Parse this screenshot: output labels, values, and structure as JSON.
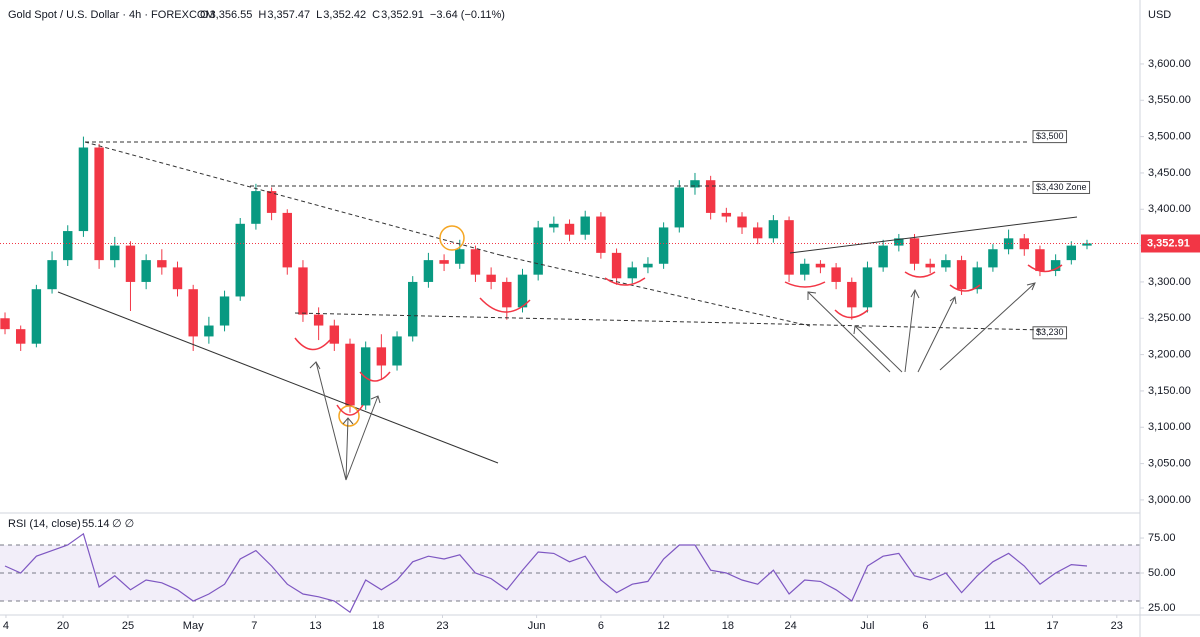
{
  "chart_data": [
    {
      "type": "candlestick",
      "title": "Gold Spot / U.S. Dollar · 4h · FOREXCOM",
      "ohlc": [
        {
          "key": "O",
          "value": "3,356.55"
        },
        {
          "key": "H",
          "value": "3,357.47"
        },
        {
          "key": "L",
          "value": "3,352.42"
        },
        {
          "key": "C",
          "value": "3,352.91"
        }
      ],
      "change": "−3.64 (−0.11%)",
      "unit": "USD",
      "up_color": "#089981",
      "down_color": "#f23645",
      "xlim": [
        -0.32,
        72.38
      ],
      "xticks": [
        {
          "value": 0.06,
          "label": "4"
        },
        {
          "value": 3.7,
          "label": "20"
        },
        {
          "value": 7.84,
          "label": "25"
        },
        {
          "value": 12,
          "label": "May"
        },
        {
          "value": 15.9,
          "label": "7"
        },
        {
          "value": 19.8,
          "label": "13"
        },
        {
          "value": 23.8,
          "label": "18"
        },
        {
          "value": 27.9,
          "label": "23"
        },
        {
          "value": 33.9,
          "label": "Jun"
        },
        {
          "value": 38,
          "label": "6"
        },
        {
          "value": 42,
          "label": "12"
        },
        {
          "value": 46.1,
          "label": "18"
        },
        {
          "value": 50.1,
          "label": "24"
        },
        {
          "value": 55,
          "label": "Jul"
        },
        {
          "value": 58.7,
          "label": "6"
        },
        {
          "value": 62.8,
          "label": "11"
        },
        {
          "value": 66.8,
          "label": "17"
        },
        {
          "value": 70.9,
          "label": "23"
        }
      ],
      "ylim": [
        2982,
        3688
      ],
      "yticks": [
        {
          "value": 3000,
          "label": "3,000.00"
        },
        {
          "value": 3050,
          "label": "3,050.00"
        },
        {
          "value": 3100,
          "label": "3,100.00"
        },
        {
          "value": 3150,
          "label": "3,150.00"
        },
        {
          "value": 3200,
          "label": "3,200.00"
        },
        {
          "value": 3250,
          "label": "3,250.00"
        },
        {
          "value": 3300,
          "label": "3,300.00"
        },
        {
          "value": 3350,
          "label": "3,350.00"
        },
        {
          "value": 3400,
          "label": "3,400.00"
        },
        {
          "value": 3450,
          "label": "3,450.00"
        },
        {
          "value": 3500,
          "label": "3,500.00"
        },
        {
          "value": 3550,
          "label": "3,550.00"
        },
        {
          "value": 3600,
          "label": "3,600.00"
        }
      ],
      "open": [
        3250,
        3235,
        3215,
        3290,
        3330,
        3370,
        3485,
        3330,
        3350,
        3300,
        3330,
        3320,
        3290,
        3225,
        3240,
        3280,
        3380,
        3425,
        3395,
        3320,
        3255,
        3240,
        3215,
        3130,
        3210,
        3185,
        3225,
        3300,
        3330,
        3325,
        3345,
        3310,
        3300,
        3265,
        3310,
        3375,
        3380,
        3365,
        3390,
        3340,
        3305,
        3320,
        3325,
        3375,
        3430,
        3440,
        3395,
        3390,
        3375,
        3360,
        3385,
        3310,
        3325,
        3320,
        3300,
        3265,
        3320,
        3350,
        3360,
        3325,
        3320,
        3330,
        3290,
        3320,
        3345,
        3360,
        3345,
        3315,
        3330,
        3350
      ],
      "high": [
        3258,
        3240,
        3296,
        3342,
        3378,
        3500,
        3490,
        3362,
        3356,
        3338,
        3345,
        3328,
        3296,
        3252,
        3288,
        3388,
        3435,
        3430,
        3400,
        3330,
        3265,
        3248,
        3222,
        3218,
        3228,
        3232,
        3308,
        3340,
        3338,
        3358,
        3350,
        3320,
        3306,
        3318,
        3384,
        3390,
        3386,
        3398,
        3396,
        3346,
        3328,
        3334,
        3382,
        3440,
        3450,
        3446,
        3402,
        3396,
        3382,
        3392,
        3390,
        3332,
        3330,
        3326,
        3306,
        3328,
        3358,
        3366,
        3366,
        3332,
        3338,
        3336,
        3328,
        3352,
        3372,
        3366,
        3350,
        3338,
        3356,
        3358
      ],
      "low": [
        3228,
        3205,
        3210,
        3284,
        3322,
        3362,
        3318,
        3320,
        3260,
        3290,
        3310,
        3280,
        3205,
        3215,
        3232,
        3274,
        3372,
        3385,
        3310,
        3245,
        3220,
        3205,
        3120,
        3124,
        3165,
        3178,
        3218,
        3292,
        3315,
        3318,
        3300,
        3290,
        3248,
        3258,
        3302,
        3368,
        3356,
        3358,
        3332,
        3296,
        3298,
        3312,
        3318,
        3368,
        3420,
        3386,
        3382,
        3366,
        3352,
        3354,
        3300,
        3302,
        3312,
        3290,
        3248,
        3258,
        3314,
        3342,
        3316,
        3312,
        3314,
        3282,
        3284,
        3314,
        3338,
        3336,
        3308,
        3308,
        3324,
        3345
      ],
      "close": [
        3235,
        3215,
        3290,
        3330,
        3370,
        3485,
        3330,
        3350,
        3300,
        3330,
        3320,
        3290,
        3225,
        3240,
        3280,
        3380,
        3425,
        3395,
        3320,
        3255,
        3240,
        3215,
        3130,
        3210,
        3185,
        3225,
        3300,
        3330,
        3325,
        3345,
        3310,
        3300,
        3265,
        3310,
        3375,
        3380,
        3365,
        3390,
        3340,
        3305,
        3320,
        3325,
        3375,
        3430,
        3440,
        3395,
        3390,
        3375,
        3360,
        3385,
        3310,
        3325,
        3320,
        3300,
        3265,
        3320,
        3350,
        3360,
        3325,
        3320,
        3330,
        3290,
        3320,
        3345,
        3360,
        3345,
        3315,
        3330,
        3350,
        3353
      ],
      "last_price": {
        "value": 3352.91,
        "label": "3,352.91"
      },
      "annotations": [
        {
          "value": 3500,
          "label": "$3,500"
        },
        {
          "value": 3430,
          "label": "$3,430 Zone"
        },
        {
          "value": 3230,
          "label": "$3,230"
        }
      ]
    },
    {
      "type": "line",
      "title": "RSI (14, close)",
      "value_label": "55.14",
      "suffix": "∅ ∅",
      "color": "#7e57c2",
      "ylim": [
        20,
        92.9
      ],
      "yticks": [
        {
          "value": 25,
          "label": "25.00"
        },
        {
          "value": 50,
          "label": "50.00"
        },
        {
          "value": 75,
          "label": "75.00"
        }
      ],
      "levels": [
        70,
        50,
        30
      ],
      "values": [
        55,
        50,
        62,
        66,
        70,
        78,
        40,
        48,
        38,
        45,
        43,
        38,
        30,
        35,
        42,
        60,
        66,
        55,
        42,
        35,
        33,
        30,
        22,
        45,
        38,
        45,
        58,
        62,
        60,
        63,
        50,
        46,
        38,
        52,
        65,
        64,
        58,
        62,
        45,
        36,
        42,
        44,
        60,
        70,
        70,
        52,
        50,
        45,
        42,
        52,
        35,
        45,
        44,
        38,
        30,
        55,
        62,
        64,
        48,
        45,
        50,
        36,
        48,
        58,
        64,
        55,
        42,
        50,
        56,
        55
      ]
    }
  ]
}
